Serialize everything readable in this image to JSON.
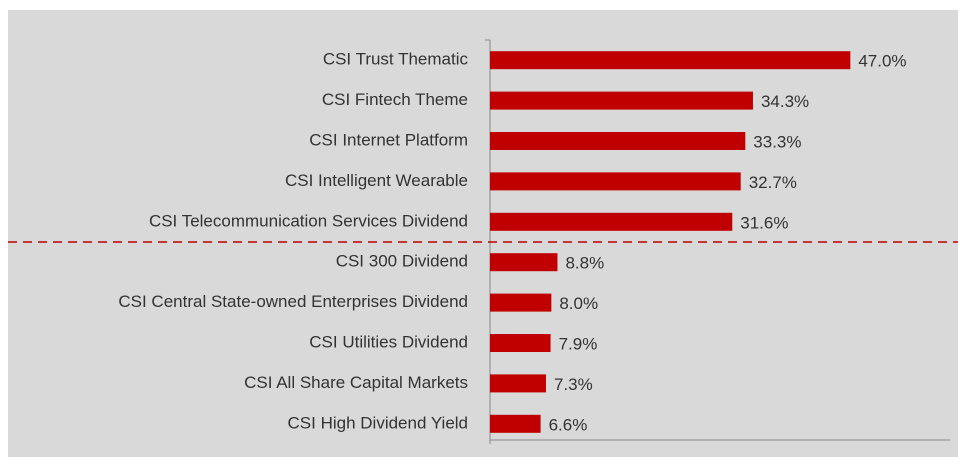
{
  "chart_data": {
    "type": "barh",
    "categories": [
      "CSI Trust Thematic",
      "CSI Fintech Theme",
      "CSI Internet Platform",
      "CSI Intelligent Wearable",
      "CSI Telecommunication Services Dividend",
      "CSI 300 Dividend",
      "CSI Central State-owned Enterprises Dividend",
      "CSI Utilities Dividend",
      "CSI All Share Capital Markets",
      "CSI High Dividend Yield"
    ],
    "values": [
      47.0,
      34.3,
      33.3,
      32.7,
      31.6,
      8.8,
      8.0,
      7.9,
      7.3,
      6.6
    ],
    "value_labels": [
      "47.0%",
      "34.3%",
      "33.3%",
      "32.7%",
      "31.6%",
      "8.8%",
      "8.0%",
      "7.9%",
      "7.3%",
      "6.6%"
    ],
    "color": "#c00000",
    "xlim": [
      0,
      60
    ],
    "divider_after": 4,
    "divider_color": "#c00000"
  }
}
